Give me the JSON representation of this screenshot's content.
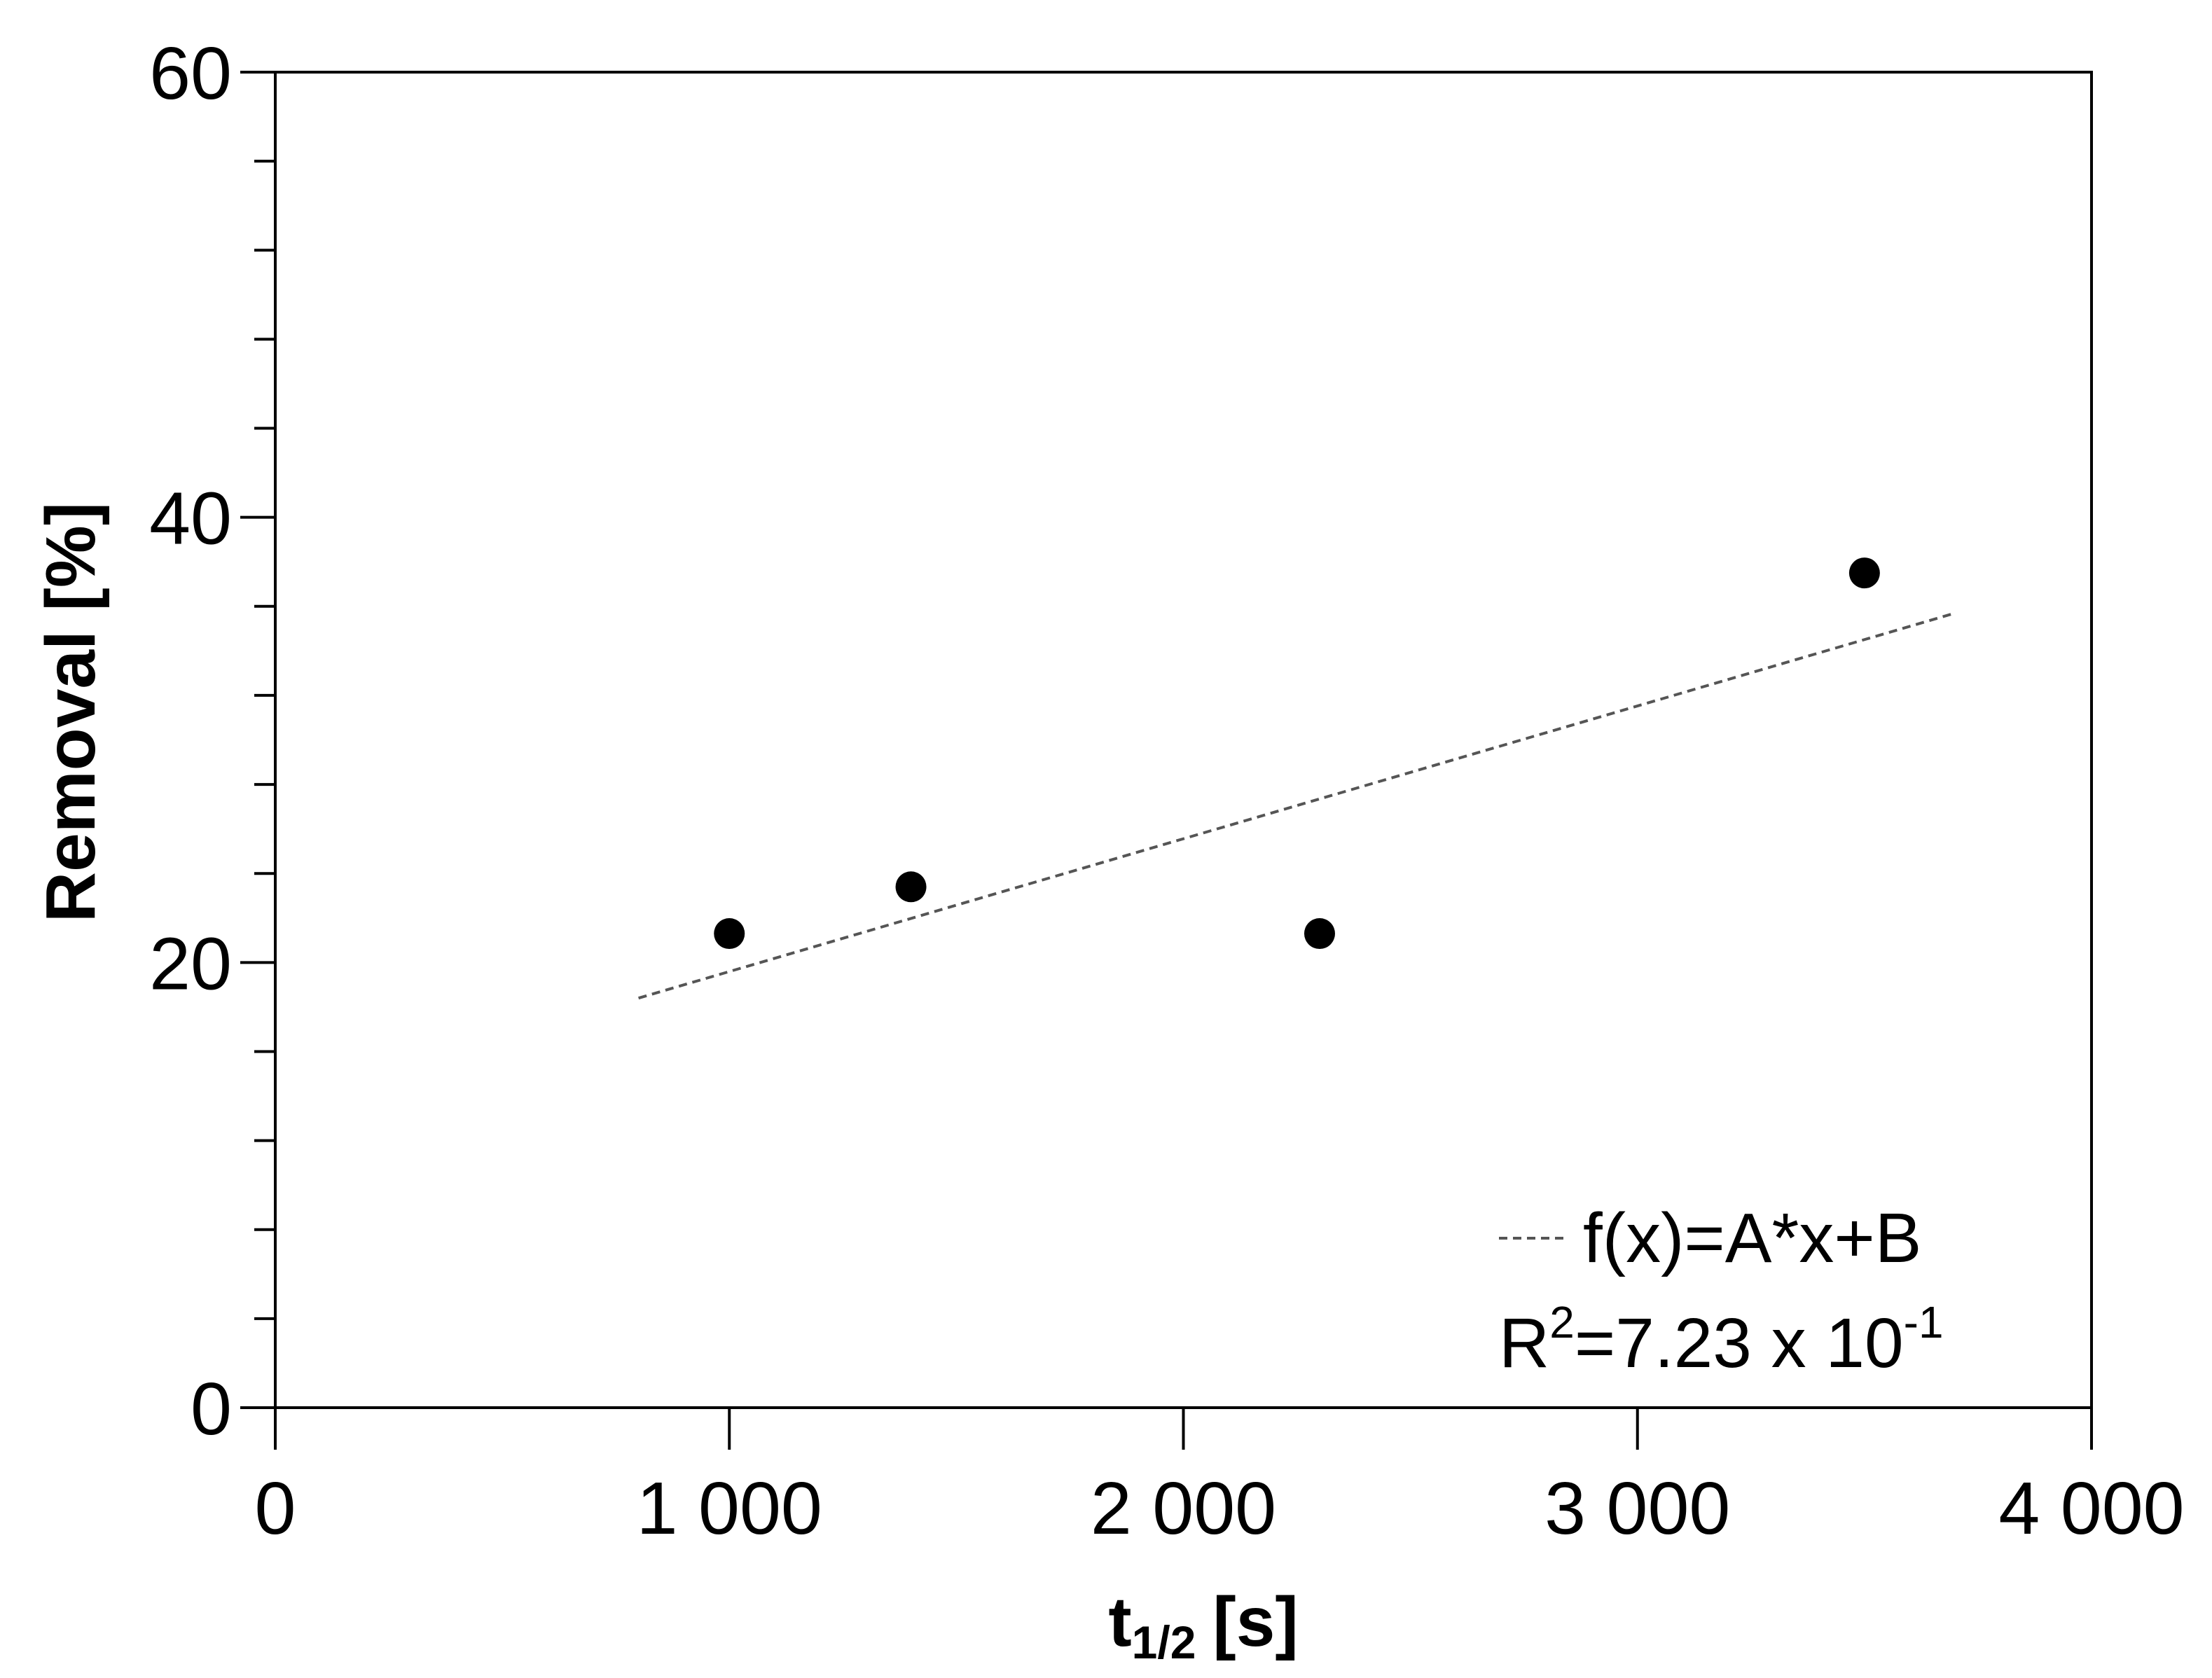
{
  "chart_data": {
    "type": "scatter",
    "title": "",
    "xlabel": {
      "main": "t",
      "sub": "1/2",
      "unit": "[s]"
    },
    "ylabel": "Removal [%]",
    "xlim": [
      0,
      4000
    ],
    "ylim": [
      0,
      60
    ],
    "x_ticks": [
      0,
      1000,
      2000,
      3000,
      4000
    ],
    "x_tick_labels": [
      "0",
      "1 000",
      "2 000",
      "3 000",
      "4 000"
    ],
    "y_ticks": [
      0,
      20,
      40,
      60
    ],
    "y_tick_labels": [
      "0",
      "20",
      "40",
      "60"
    ],
    "y_minor_step": 4,
    "grid": false,
    "series": [
      {
        "points": [
          {
            "x": 1000,
            "y": 21.3
          },
          {
            "x": 1400,
            "y": 23.4
          },
          {
            "x": 2300,
            "y": 21.3
          },
          {
            "x": 3500,
            "y": 37.5
          }
        ],
        "color": "#000000"
      }
    ],
    "fit": {
      "type": "linear",
      "x_range": [
        800,
        3700
      ],
      "y_at_start": 18.4,
      "y_at_end": 35.7,
      "color": "#555555",
      "dash": true
    },
    "legend": {
      "placement": "bottom-right",
      "fit_label": "f(x)=A*x+B",
      "r2_prefix": "R",
      "r2_sup": "2",
      "r2_value": "=7.23 x 10",
      "r2_exp": "-1"
    }
  }
}
